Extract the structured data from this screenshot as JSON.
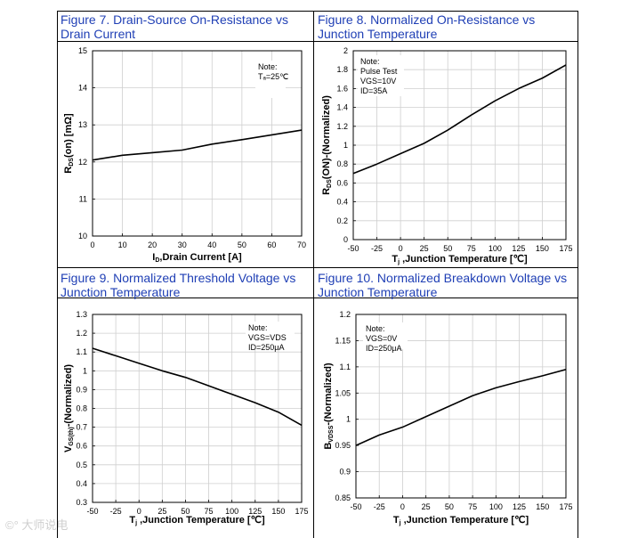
{
  "figures": [
    {
      "caption_l1": "Figure 7. Drain-Source On-Resistance vs",
      "caption_l2": "Drain Current"
    },
    {
      "caption_l1": "Figure 8. Normalized On-Resistance vs",
      "caption_l2": "Junction Temperature"
    },
    {
      "caption_l1": "Figure 9. Normalized Threshold Voltage vs",
      "caption_l2": "Junction Temperature"
    },
    {
      "caption_l1": "Figure 10. Normalized Breakdown Voltage vs",
      "caption_l2": "Junction Temperature"
    }
  ],
  "watermark": "©° 大师说电",
  "chart_data": [
    {
      "type": "line",
      "ylabel_main": "R",
      "ylabel_sub": "DS",
      "ylabel_rest": "(on) [mΩ]",
      "xlabel_pre": "I",
      "xlabel_sub": "D",
      "xlabel_rest": ",Drain Current [A]",
      "xlim": [
        0,
        70
      ],
      "ylim": [
        10,
        15
      ],
      "xticks": [
        "0",
        "10",
        "20",
        "30",
        "40",
        "50",
        "60",
        "70"
      ],
      "yticks": [
        "10",
        "11",
        "12",
        "13",
        "14",
        "15"
      ],
      "note": [
        "Note:",
        "Tₐ=25℃"
      ],
      "series": [
        {
          "name": "RDS(on)",
          "x": [
            0,
            10,
            20,
            30,
            40,
            50,
            60,
            70
          ],
          "y": [
            12.05,
            12.18,
            12.25,
            12.32,
            12.48,
            12.6,
            12.73,
            12.86
          ]
        }
      ]
    },
    {
      "type": "line",
      "ylabel_main": "R",
      "ylabel_sub": "DS",
      "ylabel_rest": "(ON)-(Normalized)",
      "xlabel_pre": "T",
      "xlabel_sub": "j",
      "xlabel_rest": " ,Junction Temperature [℃]",
      "xlim": [
        -50,
        175
      ],
      "ylim": [
        0,
        2
      ],
      "xticks": [
        "-50",
        "-25",
        "0",
        "25",
        "50",
        "75",
        "100",
        "125",
        "150",
        "175"
      ],
      "yticks": [
        "0",
        "0.2",
        "0.4",
        "0.6",
        "0.8",
        "1",
        "1.2",
        "1.4",
        "1.6",
        "1.8",
        "2"
      ],
      "note": [
        "Note:",
        "Pulse Test",
        "VGS=10V",
        "ID=35A"
      ],
      "series": [
        {
          "name": "RDS(on) normalized",
          "x": [
            -50,
            -25,
            0,
            25,
            50,
            75,
            100,
            125,
            150,
            175
          ],
          "y": [
            0.7,
            0.8,
            0.91,
            1.02,
            1.16,
            1.32,
            1.47,
            1.6,
            1.71,
            1.85
          ]
        }
      ]
    },
    {
      "type": "line",
      "ylabel_main": "V",
      "ylabel_sub": "GS(th)",
      "ylabel_rest": "-(Normalized)",
      "xlabel_pre": "T",
      "xlabel_sub": "j",
      "xlabel_rest": " ,Junction Temperature [℃]",
      "xlim": [
        -50,
        175
      ],
      "ylim": [
        0.3,
        1.3
      ],
      "xticks": [
        "-50",
        "-25",
        "0",
        "25",
        "50",
        "75",
        "100",
        "125",
        "150",
        "175"
      ],
      "yticks": [
        "0.3",
        "0.4",
        "0.5",
        "0.6",
        "0.7",
        "0.8",
        "0.9",
        "1",
        "1.1",
        "1.2",
        "1.3"
      ],
      "note": [
        "Note:",
        "VGS=VDS",
        "ID=250μA"
      ],
      "series": [
        {
          "name": "VGS(th) normalized",
          "x": [
            -50,
            -25,
            0,
            25,
            50,
            75,
            100,
            125,
            150,
            175
          ],
          "y": [
            1.12,
            1.08,
            1.04,
            1.0,
            0.965,
            0.92,
            0.875,
            0.83,
            0.78,
            0.71
          ]
        }
      ]
    },
    {
      "type": "line",
      "ylabel_main": "B",
      "ylabel_sub": "VDSS",
      "ylabel_rest": "-(Normalized)",
      "xlabel_pre": "T",
      "xlabel_sub": "j",
      "xlabel_rest": " ,Junction Temperature [℃]",
      "xlim": [
        -50,
        175
      ],
      "ylim": [
        0.85,
        1.2
      ],
      "xticks": [
        "-50",
        "-25",
        "0",
        "25",
        "50",
        "75",
        "100",
        "125",
        "150",
        "175"
      ],
      "yticks": [
        "0.85",
        "0.9",
        "0.95",
        "1",
        "1.05",
        "1.1",
        "1.15",
        "1.2"
      ],
      "note": [
        "Note:",
        "VGS=0V",
        "ID=250μA"
      ],
      "series": [
        {
          "name": "BVDSS normalized",
          "x": [
            -50,
            -25,
            0,
            25,
            50,
            75,
            100,
            125,
            150,
            175
          ],
          "y": [
            0.95,
            0.97,
            0.985,
            1.005,
            1.025,
            1.045,
            1.06,
            1.072,
            1.083,
            1.095
          ]
        }
      ]
    }
  ]
}
